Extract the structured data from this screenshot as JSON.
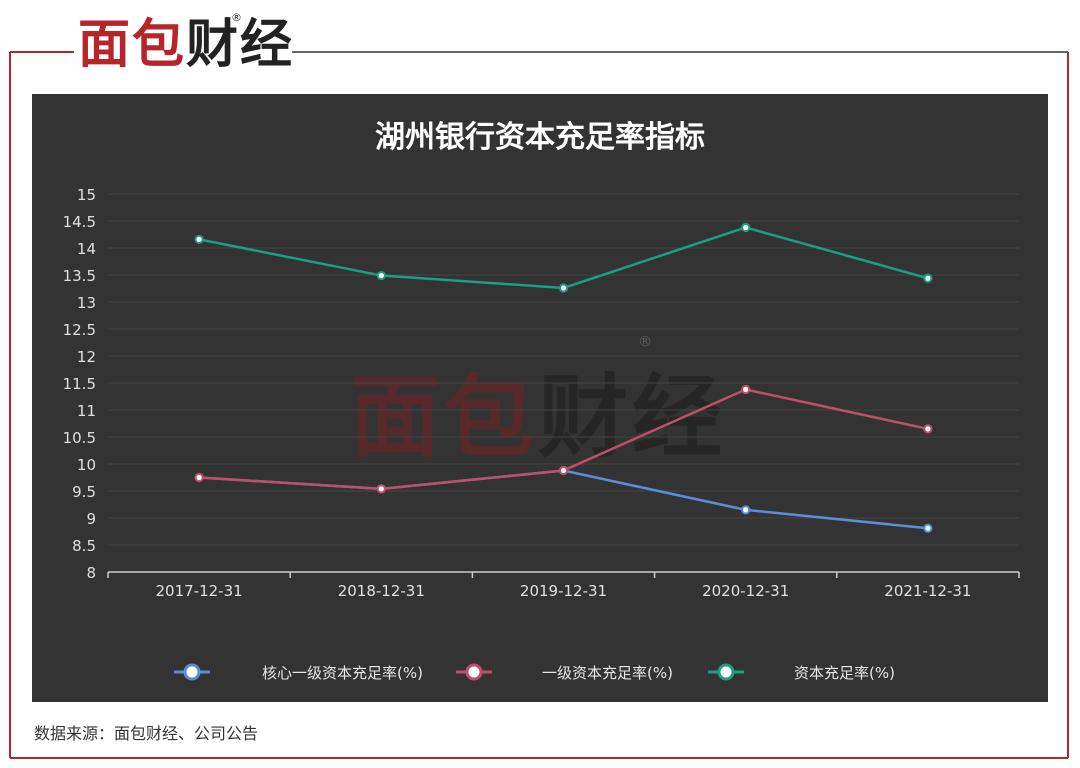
{
  "brand": {
    "logo_chars": [
      "面",
      "包",
      "财",
      "经"
    ],
    "registered_mark": "®"
  },
  "source_note": "数据来源：面包财经、公司公告",
  "colors": {
    "frame": "#b5252a",
    "panel_bg": "#333333",
    "grid": "#444444",
    "axis_text": "#e0e0e0"
  },
  "chart_data": {
    "type": "line",
    "title": "湖州银行资本充足率指标",
    "categories": [
      "2017-12-31",
      "2018-12-31",
      "2019-12-31",
      "2020-12-31",
      "2021-12-31"
    ],
    "ylim": [
      8,
      15
    ],
    "ytick_step": 0.5,
    "yticks": [
      "8",
      "8.5",
      "9",
      "9.5",
      "10",
      "10.5",
      "11",
      "11.5",
      "12",
      "12.5",
      "13",
      "13.5",
      "14",
      "14.5",
      "15"
    ],
    "grid": true,
    "legend_position": "bottom",
    "series": [
      {
        "name": "核心一级资本充足率(%)",
        "color": "#5b8ddb",
        "values": [
          9.75,
          9.54,
          9.88,
          9.15,
          8.81
        ]
      },
      {
        "name": "一级资本充足率(%)",
        "color": "#c0506a",
        "values": [
          9.75,
          9.54,
          9.88,
          11.38,
          10.65
        ]
      },
      {
        "name": "资本充足率(%)",
        "color": "#1aa083",
        "values": [
          14.16,
          13.49,
          13.26,
          14.38,
          13.44
        ]
      }
    ]
  }
}
